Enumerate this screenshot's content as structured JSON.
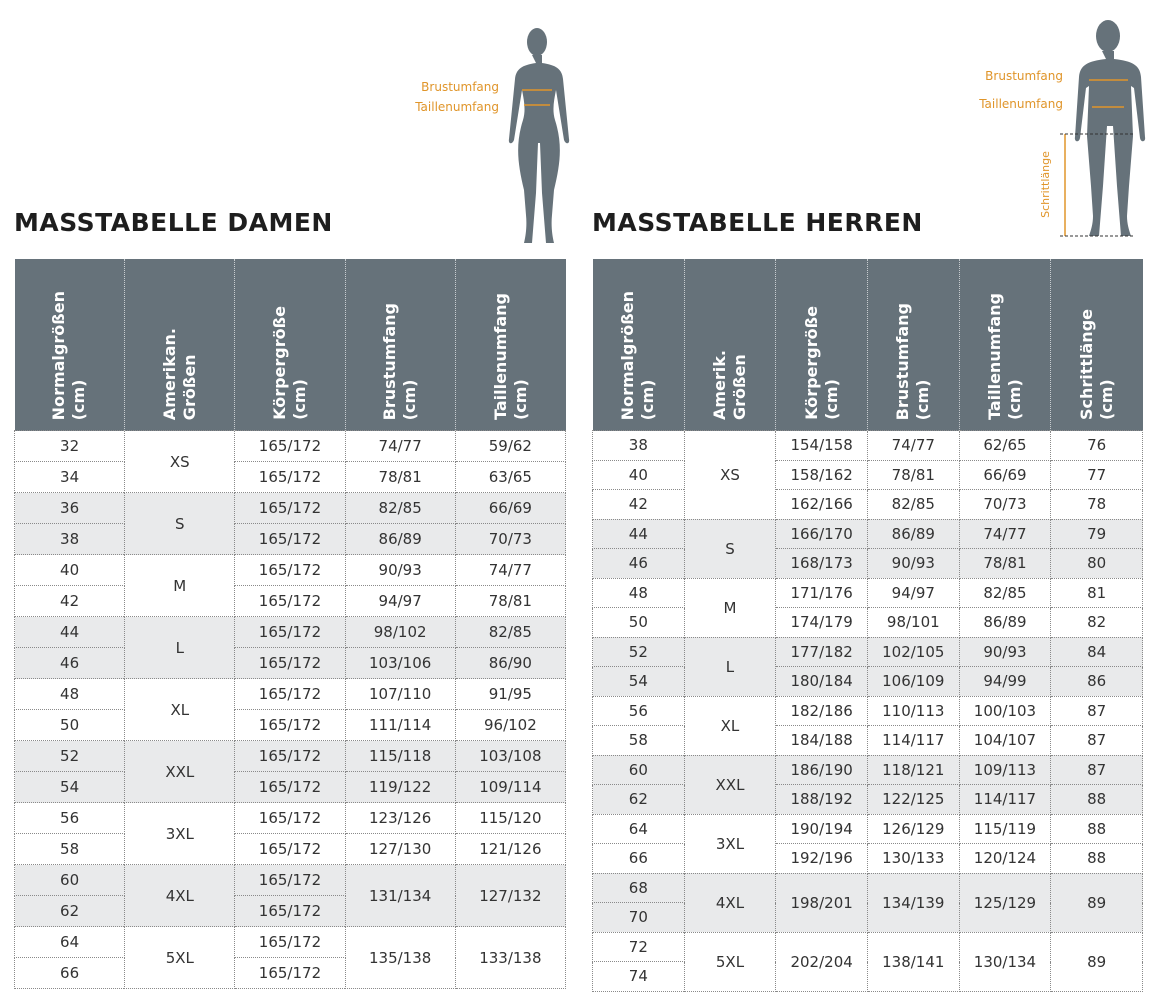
{
  "damen": {
    "title": "MASSTABELLE DAMEN",
    "figure_labels": [
      "Brustumfang",
      "Taillenumfang"
    ],
    "headers": [
      [
        "Normalgrößen",
        "(cm)"
      ],
      [
        "Amerikan.",
        "Größen"
      ],
      [
        "Körpergröße",
        "(cm)"
      ],
      [
        "Brustumfang",
        "(cm)"
      ],
      [
        "Taillenumfang",
        "(cm)"
      ]
    ],
    "groups": [
      {
        "us": "XS",
        "rows": [
          [
            "32",
            "165/172",
            "74/77",
            "59/62"
          ],
          [
            "34",
            "165/172",
            "78/81",
            "63/65"
          ]
        ]
      },
      {
        "us": "S",
        "rows": [
          [
            "36",
            "165/172",
            "82/85",
            "66/69"
          ],
          [
            "38",
            "165/172",
            "86/89",
            "70/73"
          ]
        ]
      },
      {
        "us": "M",
        "rows": [
          [
            "40",
            "165/172",
            "90/93",
            "74/77"
          ],
          [
            "42",
            "165/172",
            "94/97",
            "78/81"
          ]
        ]
      },
      {
        "us": "L",
        "rows": [
          [
            "44",
            "165/172",
            "98/102",
            "82/85"
          ],
          [
            "46",
            "165/172",
            "103/106",
            "86/90"
          ]
        ]
      },
      {
        "us": "XL",
        "rows": [
          [
            "48",
            "165/172",
            "107/110",
            "91/95"
          ],
          [
            "50",
            "165/172",
            "111/114",
            "96/102"
          ]
        ]
      },
      {
        "us": "XXL",
        "rows": [
          [
            "52",
            "165/172",
            "115/118",
            "103/108"
          ],
          [
            "54",
            "165/172",
            "119/122",
            "109/114"
          ]
        ]
      },
      {
        "us": "3XL",
        "rows": [
          [
            "56",
            "165/172",
            "123/126",
            "115/120"
          ],
          [
            "58",
            "165/172",
            "127/130",
            "121/126"
          ]
        ]
      },
      {
        "us": "4XL",
        "rows": [
          [
            "60",
            "165/172"
          ],
          [
            "62",
            "165/172"
          ]
        ],
        "shared": [
          "131/134",
          "127/132"
        ]
      },
      {
        "us": "5XL",
        "rows": [
          [
            "64",
            "165/172"
          ],
          [
            "66",
            "165/172"
          ]
        ],
        "shared": [
          "135/138",
          "133/138"
        ]
      }
    ]
  },
  "herren": {
    "title": "MASSTABELLE HERREN",
    "figure_labels": [
      "Brustumfang",
      "Taillenumfang",
      "Schrittlänge"
    ],
    "headers": [
      [
        "Normalgrößen",
        "(cm)"
      ],
      [
        "Amerik.",
        "Größen"
      ],
      [
        "Körpergröße",
        "(cm)"
      ],
      [
        "Brustumfang",
        "(cm)"
      ],
      [
        "Taillenumfang",
        "(cm)"
      ],
      [
        "Schrittlänge",
        "(cm)"
      ]
    ],
    "groups": [
      {
        "us": "XS",
        "rows": [
          [
            "38",
            "154/158",
            "74/77",
            "62/65",
            "76"
          ],
          [
            "40",
            "158/162",
            "78/81",
            "66/69",
            "77"
          ],
          [
            "42",
            "162/166",
            "82/85",
            "70/73",
            "78"
          ]
        ]
      },
      {
        "us": "S",
        "rows": [
          [
            "44",
            "166/170",
            "86/89",
            "74/77",
            "79"
          ],
          [
            "46",
            "168/173",
            "90/93",
            "78/81",
            "80"
          ]
        ]
      },
      {
        "us": "M",
        "rows": [
          [
            "48",
            "171/176",
            "94/97",
            "82/85",
            "81"
          ],
          [
            "50",
            "174/179",
            "98/101",
            "86/89",
            "82"
          ]
        ]
      },
      {
        "us": "L",
        "rows": [
          [
            "52",
            "177/182",
            "102/105",
            "90/93",
            "84"
          ],
          [
            "54",
            "180/184",
            "106/109",
            "94/99",
            "86"
          ]
        ]
      },
      {
        "us": "XL",
        "rows": [
          [
            "56",
            "182/186",
            "110/113",
            "100/103",
            "87"
          ],
          [
            "58",
            "184/188",
            "114/117",
            "104/107",
            "87"
          ]
        ]
      },
      {
        "us": "XXL",
        "rows": [
          [
            "60",
            "186/190",
            "118/121",
            "109/113",
            "87"
          ],
          [
            "62",
            "188/192",
            "122/125",
            "114/117",
            "88"
          ]
        ]
      },
      {
        "us": "3XL",
        "rows": [
          [
            "64",
            "190/194",
            "126/129",
            "115/119",
            "88"
          ],
          [
            "66",
            "192/196",
            "130/133",
            "120/124",
            "88"
          ]
        ]
      },
      {
        "us": "4XL",
        "rows": [
          [
            "68"
          ],
          [
            "70"
          ]
        ],
        "shared": [
          "198/201",
          "134/139",
          "125/129",
          "89"
        ]
      },
      {
        "us": "5XL",
        "rows": [
          [
            "72"
          ],
          [
            "74"
          ]
        ],
        "shared": [
          "202/204",
          "138/141",
          "130/134",
          "89"
        ]
      }
    ]
  }
}
